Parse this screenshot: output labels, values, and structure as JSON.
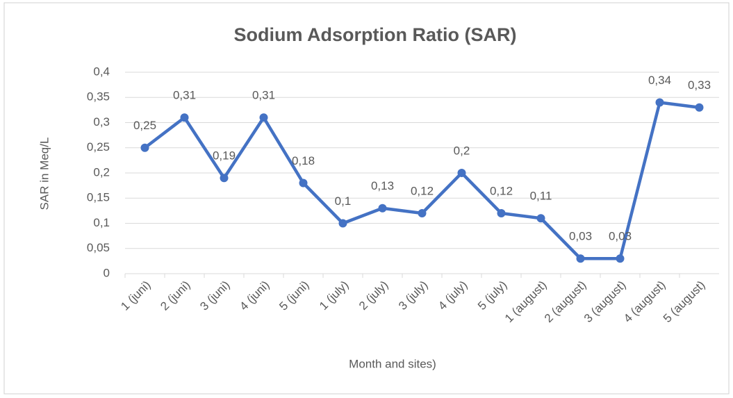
{
  "chart_data": {
    "type": "line",
    "title": "Sodium Adsorption Ratio (SAR)",
    "x_label": "Month and sites)",
    "y_label": "SAR  in Meq/L",
    "categories": [
      "1 (juni)",
      "2 (juni)",
      "3 (juni)",
      "4 (juni)",
      "5 (juni)",
      "1 (july)",
      "2 (july)",
      "3 (july)",
      "4 (july)",
      "5 (july)",
      "1 (august)",
      "2 (august)",
      "3 (august)",
      "4 (august)",
      "5 (august)"
    ],
    "series": [
      {
        "name": "SAR",
        "color": "#4472c4",
        "values": [
          0.25,
          0.31,
          0.19,
          0.31,
          0.18,
          0.1,
          0.13,
          0.12,
          0.2,
          0.12,
          0.11,
          0.03,
          0.03,
          0.34,
          0.33
        ],
        "value_labels": [
          "0,25",
          "0,31",
          "0,19",
          "0,31",
          "0,18",
          "0,1",
          "0,13",
          "0,12",
          "0,2",
          "0,12",
          "0,11",
          "0,03",
          "0,03",
          "0,34",
          "0,33"
        ]
      }
    ],
    "ylim": [
      0,
      0.4
    ],
    "yticks": [
      0,
      {
        "value": 0.05,
        "label": "0,05"
      },
      {
        "value": 0.1,
        "label": "0,1"
      },
      {
        "value": 0.15,
        "label": "0,15"
      },
      {
        "value": 0.2,
        "label": "0,2"
      },
      {
        "value": 0.25,
        "label": "0,25"
      },
      {
        "value": 0.3,
        "label": "0,3"
      },
      {
        "value": 0.35,
        "label": "0,35"
      },
      {
        "value": 0.4,
        "label": "0,4"
      }
    ],
    "grid": true
  }
}
